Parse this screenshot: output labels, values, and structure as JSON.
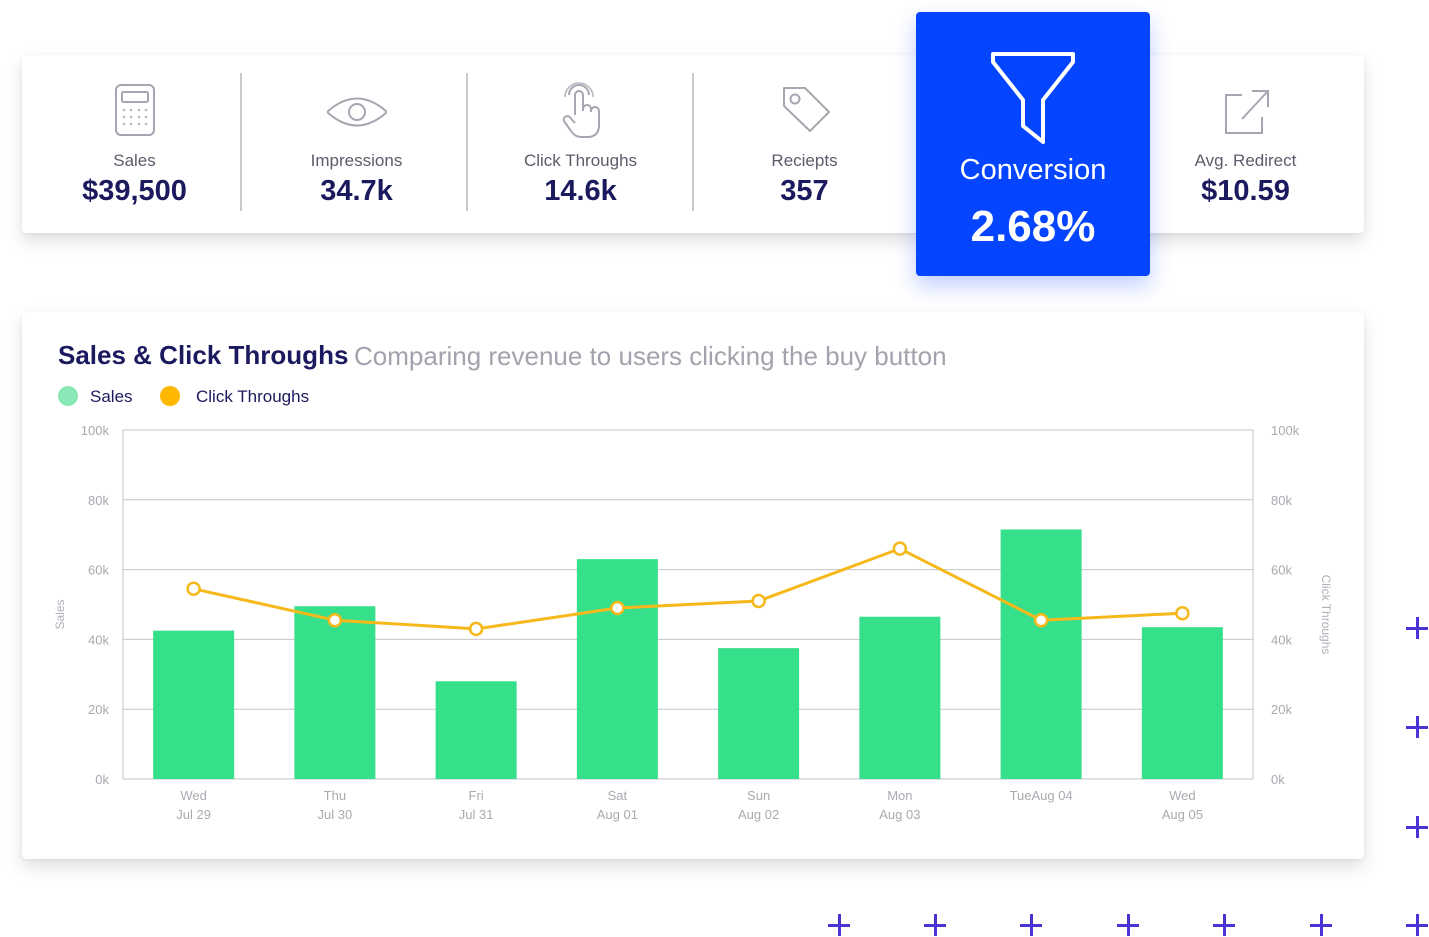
{
  "stats": [
    {
      "label": "Sales",
      "value": "$39,500",
      "icon": "calculator-icon"
    },
    {
      "label": "Impressions",
      "value": "34.7k",
      "icon": "eye-icon"
    },
    {
      "label": "Click Throughs",
      "value": "14.6k",
      "icon": "pointer-hand-icon"
    },
    {
      "label": "Reciepts",
      "value": "357",
      "icon": "tag-icon"
    },
    {
      "label": "Avg. Redirect",
      "value": "$10.59",
      "icon": "external-link-icon"
    }
  ],
  "conversion": {
    "label": "Conversion",
    "value": "2.68%",
    "icon": "funnel-icon",
    "color": "#0545ff"
  },
  "chart": {
    "title": "Sales & Click Throughs",
    "subtitle": "Comparing revenue to users clicking the buy button",
    "legend": [
      {
        "label": "Sales",
        "color": "#8ae8b8"
      },
      {
        "label": "Click Throughs",
        "color": "#ffb700"
      }
    ]
  },
  "chart_data": {
    "type": "bar",
    "categories": [
      [
        "Wed",
        "Jul 29"
      ],
      [
        "Thu",
        "Jul 30"
      ],
      [
        "Fri",
        "Jul 31"
      ],
      [
        "Sat",
        "Aug 01"
      ],
      [
        "Sun",
        "Aug 02"
      ],
      [
        "Mon",
        "Aug 03"
      ],
      [
        "TueAug 04",
        ""
      ],
      [
        "Wed",
        "Aug 05"
      ]
    ],
    "series": [
      {
        "name": "Sales",
        "type": "bar",
        "axis": "left",
        "color": "#36df8a",
        "values": [
          42500,
          49500,
          28000,
          63000,
          37500,
          46500,
          71500,
          43500
        ]
      },
      {
        "name": "Click Throughs",
        "type": "line",
        "axis": "right",
        "color": "#f6b81a",
        "values": [
          54500,
          45500,
          43000,
          49000,
          51000,
          66000,
          45500,
          47500
        ]
      }
    ],
    "ylabel": "Sales",
    "y2label": "Click Throughs",
    "ylim": [
      0,
      100000
    ],
    "y2lim": [
      0,
      100000
    ],
    "yticks": [
      "0k",
      "20k",
      "40k",
      "60k",
      "80k",
      "100k"
    ],
    "y2ticks": [
      "0k",
      "20k",
      "40k",
      "60k",
      "80k",
      "100k"
    ],
    "grid": true
  }
}
